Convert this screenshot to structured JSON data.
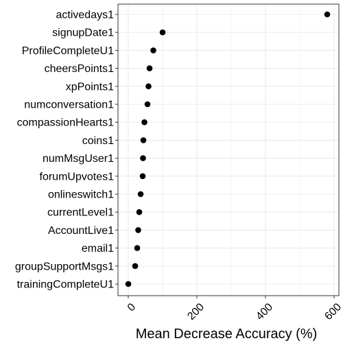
{
  "chart_data": {
    "type": "scatter",
    "variables": [
      "activedays1",
      "signupDate1",
      "ProfileCompleteU1",
      "cheersPoints1",
      "xpPoints1",
      "numconversation1",
      "compassionHearts1",
      "coins1",
      "numMsgUser1",
      "forumUpvotes1",
      "onlineswitch1",
      "currentLevel1",
      "AccountLive1",
      "email1",
      "groupSupportMsgs1",
      "trainingCompleteU1"
    ],
    "values": [
      580,
      100,
      73,
      62,
      59,
      56,
      47,
      44,
      43,
      42,
      36,
      32,
      29,
      26,
      20,
      0
    ],
    "x_ticks": [
      "0",
      "200",
      "400",
      "600"
    ],
    "x_tick_values": [
      0,
      200,
      400,
      600
    ],
    "xlabel": "Mean Decrease Accuracy (%)",
    "ylabel": "",
    "xlim": [
      -18,
      600
    ],
    "grid": true,
    "legend": "none",
    "point_color": "#000000",
    "grid_color": "#ebebeb",
    "panel_border_color": "#333333"
  }
}
